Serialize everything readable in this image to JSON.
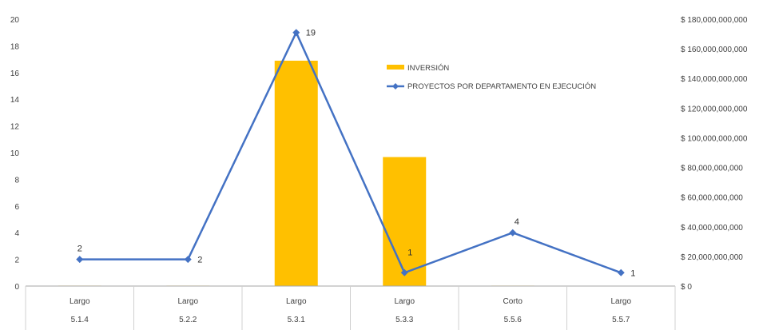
{
  "chart_data": {
    "type": "bar",
    "categories": [
      {
        "group": "Largo",
        "code": "5.1.4"
      },
      {
        "group": "Largo",
        "code": "5.2.2"
      },
      {
        "group": "Largo",
        "code": "5.3.1"
      },
      {
        "group": "Largo",
        "code": "5.3.3"
      },
      {
        "group": "Corto",
        "code": "5.5.6"
      },
      {
        "group": "Largo",
        "code": "5.5.7"
      }
    ],
    "series": [
      {
        "name": "INVERSIÓN",
        "type": "bar",
        "axis": "right",
        "color": "#FFC000",
        "values": [
          300000000,
          300000000,
          152000000000,
          87000000000,
          300000000,
          0
        ]
      },
      {
        "name": "PROYECTOS POR DEPARTAMENTO EN EJECUCIÓN",
        "type": "line",
        "axis": "left",
        "color": "#4472C4",
        "values": [
          2,
          2,
          19,
          1,
          4,
          1
        ]
      }
    ],
    "y_left": {
      "min": 0,
      "max": 20,
      "step": 2,
      "ticks": [
        "0",
        "2",
        "4",
        "6",
        "8",
        "10",
        "12",
        "14",
        "16",
        "18",
        "20"
      ]
    },
    "y_right": {
      "min": 0,
      "max": 180000000000,
      "step": 20000000000,
      "ticks": [
        "$ 0",
        "$ 20,000,000,000",
        "$ 40,000,000,000",
        "$ 60,000,000,000",
        "$ 80,000,000,000",
        "$ 100,000,000,000",
        "$ 120,000,000,000",
        "$ 140,000,000,000",
        "$ 160,000,000,000",
        "$ 180,000,000,000"
      ]
    },
    "data_labels": [
      "2",
      "2",
      "19",
      "1",
      "4",
      "1"
    ],
    "legend": {
      "position": "top-right"
    },
    "grid": false
  }
}
